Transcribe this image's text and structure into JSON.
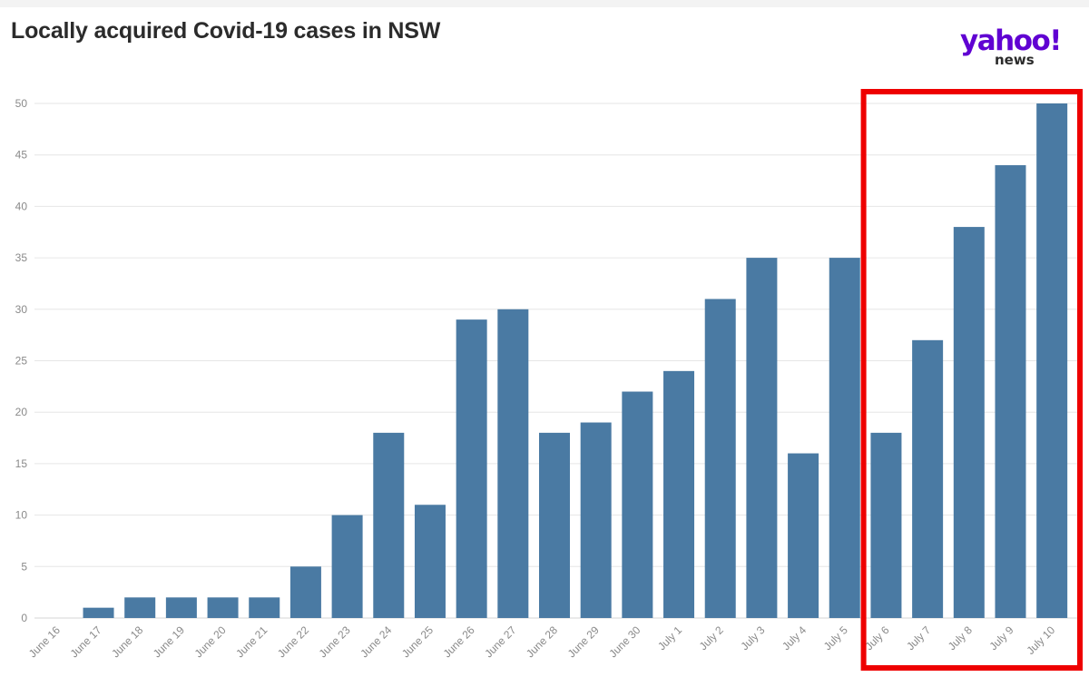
{
  "header": {
    "title": "Locally acquired Covid-19 cases in NSW"
  },
  "logo": {
    "brand": "yahoo!",
    "sub": "news",
    "brand_color": "#6001d2"
  },
  "colors": {
    "bar": "#4a7aa3",
    "highlight": "#ee0000",
    "grid": "#e6e6e6"
  },
  "chart_data": {
    "type": "bar",
    "title": "Locally acquired Covid-19 cases in NSW",
    "xlabel": "",
    "ylabel": "",
    "ylim": [
      0,
      50
    ],
    "yticks": [
      0,
      5,
      10,
      15,
      20,
      25,
      30,
      35,
      40,
      45,
      50
    ],
    "categories": [
      "June 16",
      "June 17",
      "June 18",
      "June 19",
      "June 20",
      "June 21",
      "June 22",
      "June 23",
      "June 24",
      "June 25",
      "June 26",
      "June 27",
      "June 28",
      "June 29",
      "June 30",
      "July 1",
      "July 2",
      "July 3",
      "July 4",
      "July 5",
      "July 6",
      "July 7",
      "July 8",
      "July 9",
      "July 10"
    ],
    "values": [
      0,
      1,
      2,
      2,
      2,
      2,
      5,
      10,
      18,
      11,
      29,
      30,
      18,
      19,
      22,
      24,
      31,
      35,
      16,
      35,
      18,
      27,
      38,
      44,
      50
    ],
    "highlight_range": [
      "July 6",
      "July 10"
    ],
    "grid": true
  }
}
